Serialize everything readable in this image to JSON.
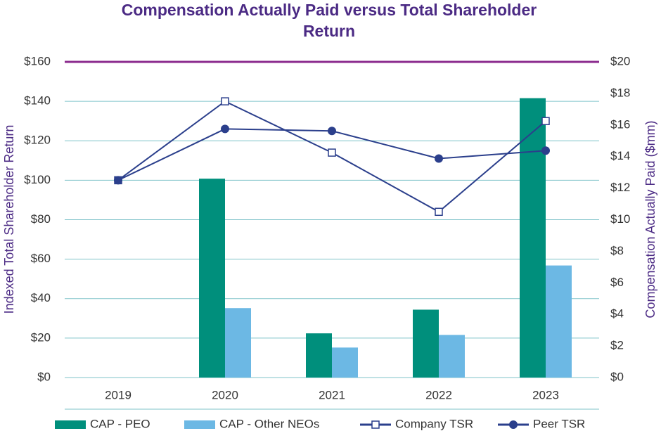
{
  "chart_data": {
    "type": "bar_line",
    "title": "Compensation Actually Paid versus Total Shareholder Return",
    "y_label": "Indexed Total Shareholder Return",
    "y2_label": "Compensation Actually Paid ($mm)",
    "categories": [
      "2019",
      "2020",
      "2021",
      "2022",
      "2023"
    ],
    "ylim": [
      0,
      160
    ],
    "yticks": [
      {
        "value": 0,
        "label": "$0"
      },
      {
        "value": 20,
        "label": "$20"
      },
      {
        "value": 40,
        "label": "$40"
      },
      {
        "value": 60,
        "label": "$60"
      },
      {
        "value": 80,
        "label": "$80"
      },
      {
        "value": 100,
        "label": "$100"
      },
      {
        "value": 120,
        "label": "$120"
      },
      {
        "value": 140,
        "label": "$140"
      },
      {
        "value": 160,
        "label": "$160"
      }
    ],
    "y2lim": [
      0,
      20
    ],
    "y2ticks": [
      {
        "value": 0,
        "label": "$0"
      },
      {
        "value": 2,
        "label": "$2"
      },
      {
        "value": 4,
        "label": "$4"
      },
      {
        "value": 6,
        "label": "$6"
      },
      {
        "value": 8,
        "label": "$8"
      },
      {
        "value": 10,
        "label": "$10"
      },
      {
        "value": 12,
        "label": "$12"
      },
      {
        "value": 14,
        "label": "$14"
      },
      {
        "value": 16,
        "label": "$16"
      },
      {
        "value": 18,
        "label": "$18"
      },
      {
        "value": 20,
        "label": "$20"
      }
    ],
    "grid": true,
    "legend": "bottom",
    "series": [
      {
        "name": "CAP - PEO",
        "type": "bar",
        "axis": "y2",
        "color": "#008f7c",
        "values": [
          null,
          12.6,
          2.8,
          4.3,
          17.7
        ]
      },
      {
        "name": "CAP - Other NEOs",
        "type": "bar",
        "axis": "y2",
        "color": "#6cb8e4",
        "values": [
          null,
          4.4,
          1.9,
          2.7,
          7.1
        ]
      },
      {
        "name": "Company TSR",
        "type": "line",
        "marker": "square",
        "color": "#2b3f8c",
        "values": [
          100,
          140,
          114,
          84,
          130
        ]
      },
      {
        "name": "Peer TSR",
        "type": "line",
        "marker": "circle",
        "color": "#2b3f8c",
        "values": [
          100,
          126,
          125,
          111,
          115
        ]
      }
    ]
  }
}
